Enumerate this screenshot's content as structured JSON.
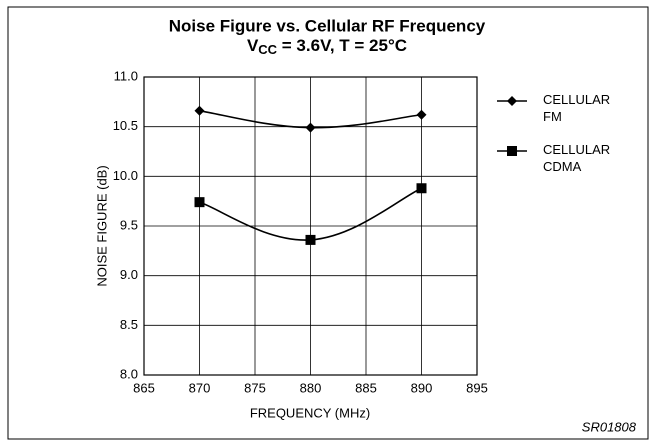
{
  "chart_data": {
    "type": "line",
    "title": "Noise Figure vs. Cellular RF Frequency",
    "subtitle": [
      "V",
      "CC",
      " = 3.6V, T = 25°C"
    ],
    "x_label": "FREQUENCY (MHz)",
    "y_label": "NOISE FIGURE (dB)",
    "annotation": "SR01808",
    "x": [
      870,
      880,
      890
    ],
    "series": [
      {
        "name": "CELLULAR FM",
        "color": "#000000",
        "marker": "diamond",
        "values": [
          10.66,
          10.49,
          10.62
        ]
      },
      {
        "name": "CELLULAR CDMA",
        "color": "#000000",
        "marker": "square",
        "values": [
          9.74,
          9.36,
          9.88
        ]
      }
    ],
    "xlim": [
      865,
      895
    ],
    "xticks": [
      865,
      870,
      875,
      880,
      885,
      890,
      895
    ],
    "ylim": [
      8,
      11
    ],
    "yticks": [
      {
        "value": 8,
        "label": "8.0"
      },
      {
        "value": 8.5,
        "label": "8.5"
      },
      {
        "value": 9,
        "label": "9.0"
      },
      {
        "value": 9.5,
        "label": "9.5"
      },
      {
        "value": 10,
        "label": "10.0"
      },
      {
        "value": 10.5,
        "label": "10.5"
      },
      {
        "value": 11,
        "label": "11.0"
      }
    ],
    "grid": true,
    "legend": "right"
  }
}
